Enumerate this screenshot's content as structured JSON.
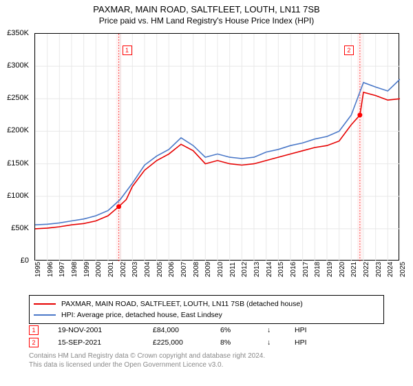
{
  "title": "PAXMAR, MAIN ROAD, SALTFLEET, LOUTH, LN11 7SB",
  "subtitle": "Price paid vs. HM Land Registry's House Price Index (HPI)",
  "chart": {
    "type": "line",
    "background_color": "#ffffff",
    "border_color": "#000000",
    "grid_color": "#e8e8e8",
    "title_fontsize": 13,
    "label_fontsize": 11,
    "ylim": [
      0,
      350000
    ],
    "ytick_step": 50000,
    "yticks": [
      "£0",
      "£50K",
      "£100K",
      "£150K",
      "£200K",
      "£250K",
      "£300K",
      "£350K"
    ],
    "xlim": [
      1995,
      2025
    ],
    "xticks": [
      1995,
      1996,
      1997,
      1998,
      1999,
      2000,
      2001,
      2002,
      2003,
      2004,
      2005,
      2006,
      2007,
      2008,
      2009,
      2010,
      2011,
      2012,
      2013,
      2014,
      2015,
      2016,
      2017,
      2018,
      2019,
      2020,
      2021,
      2022,
      2023,
      2024,
      2025
    ],
    "line_width": 1.6,
    "vband_color": "rgba(255,0,0,0.05)",
    "vline_color": "rgba(255,0,0,0.7)",
    "series": [
      {
        "name": "PAXMAR, MAIN ROAD, SALTFLEET, LOUTH, LN11 7SB (detached house)",
        "color": "#e60000",
        "x": [
          1995,
          1996,
          1997,
          1998,
          1999,
          2000,
          2001,
          2001.88,
          2002.5,
          2003,
          2004,
          2005,
          2006,
          2007,
          2008,
          2009,
          2010,
          2011,
          2012,
          2013,
          2014,
          2015,
          2016,
          2017,
          2018,
          2019,
          2020,
          2021,
          2021.71,
          2022,
          2023,
          2024,
          2025
        ],
        "y": [
          50000,
          51000,
          53000,
          56000,
          58000,
          62000,
          70000,
          84000,
          95000,
          115000,
          140000,
          155000,
          165000,
          180000,
          170000,
          150000,
          155000,
          150000,
          148000,
          150000,
          155000,
          160000,
          165000,
          170000,
          175000,
          178000,
          185000,
          210000,
          225000,
          260000,
          255000,
          248000,
          250000
        ]
      },
      {
        "name": "HPI: Average price, detached house, East Lindsey",
        "color": "#4a78c8",
        "x": [
          1995,
          1996,
          1997,
          1998,
          1999,
          2000,
          2001,
          2002,
          2003,
          2004,
          2005,
          2006,
          2007,
          2008,
          2009,
          2010,
          2011,
          2012,
          2013,
          2014,
          2015,
          2016,
          2017,
          2018,
          2019,
          2020,
          2021,
          2022,
          2023,
          2024,
          2025
        ],
        "y": [
          56000,
          57000,
          59000,
          62000,
          65000,
          70000,
          78000,
          95000,
          120000,
          148000,
          162000,
          172000,
          190000,
          178000,
          160000,
          165000,
          160000,
          158000,
          160000,
          168000,
          172000,
          178000,
          182000,
          188000,
          192000,
          200000,
          225000,
          275000,
          268000,
          262000,
          280000
        ]
      }
    ],
    "markers": [
      {
        "label": "1",
        "x": 2001.88,
        "y": 84000,
        "date": "19-NOV-2001",
        "price": "£84,000",
        "pct": "6%",
        "arrow": "↓",
        "vs": "HPI"
      },
      {
        "label": "2",
        "x": 2021.71,
        "y": 225000,
        "date": "15-SEP-2021",
        "price": "£225,000",
        "pct": "8%",
        "arrow": "↓",
        "vs": "HPI"
      }
    ]
  },
  "legend": {
    "border_color": "#000000",
    "items": [
      {
        "color": "#e60000",
        "label": "PAXMAR, MAIN ROAD, SALTFLEET, LOUTH, LN11 7SB (detached house)"
      },
      {
        "color": "#4a78c8",
        "label": "HPI: Average price, detached house, East Lindsey"
      }
    ]
  },
  "footer": {
    "line1": "Contains HM Land Registry data © Crown copyright and database right 2024.",
    "line2": "This data is licensed under the Open Government Licence v3.0."
  }
}
